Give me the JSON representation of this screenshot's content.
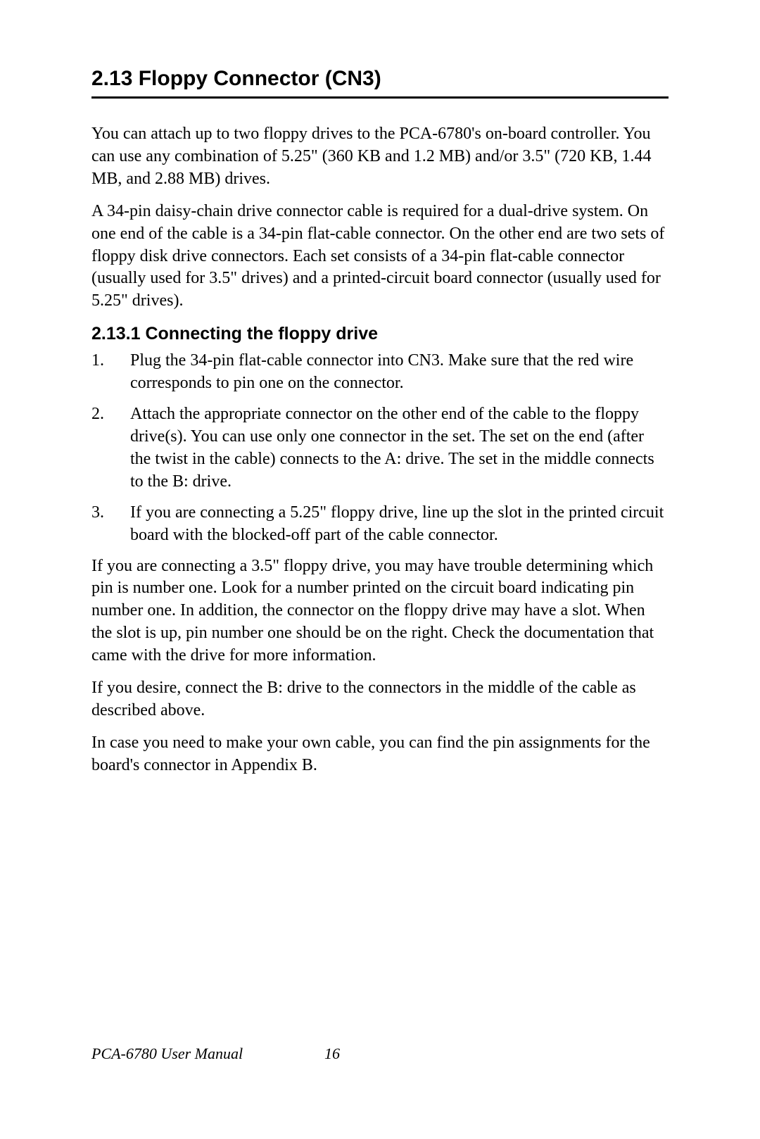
{
  "section": {
    "heading": "2.13  Floppy Connector (CN3)",
    "para1": "You can attach up to two floppy drives to the PCA-6780's on-board controller. You can use any combination of 5.25\" (360 KB and 1.2 MB) and/or 3.5\" (720 KB, 1.44 MB, and 2.88 MB) drives.",
    "para2": "A 34-pin daisy-chain drive connector cable is required for a dual-drive system. On one end of the cable is a 34-pin flat-cable connector. On the other end are two sets of floppy disk drive connectors. Each set consists of a 34-pin flat-cable connector (usually used for 3.5\" drives) and a printed-circuit board connector (usually used for 5.25\" drives).",
    "subsection": {
      "heading": "2.13.1 Connecting the floppy drive",
      "steps": [
        "Plug the 34-pin flat-cable connector into CN3. Make sure that the red wire corresponds to pin one on the connector.",
        "Attach the appropriate connector on the other end of the cable to the floppy drive(s). You can use only one connector in the set. The set on the end (after the twist in the cable) connects to the A: drive. The set in the middle connects to the B: drive.",
        "If you are connecting a 5.25\" floppy drive, line up the slot in the printed circuit board with the blocked-off part of the cable connector."
      ],
      "para3": "If you are connecting a 3.5\" floppy drive, you may have trouble determining which pin is number one. Look for a number printed on the circuit board indicating pin number one. In addition, the connector on the floppy drive may have a slot. When the slot is up, pin number one should be on the right. Check the documentation that came with the drive for more information.",
      "para4": "If you desire, connect the B: drive to the connectors in the middle of the cable as described above.",
      "para5": "In case you need to make your own cable, you can find the pin assignments for the board's connector in Appendix B."
    }
  },
  "footer": {
    "title": "PCA-6780 User Manual",
    "page": "16"
  }
}
